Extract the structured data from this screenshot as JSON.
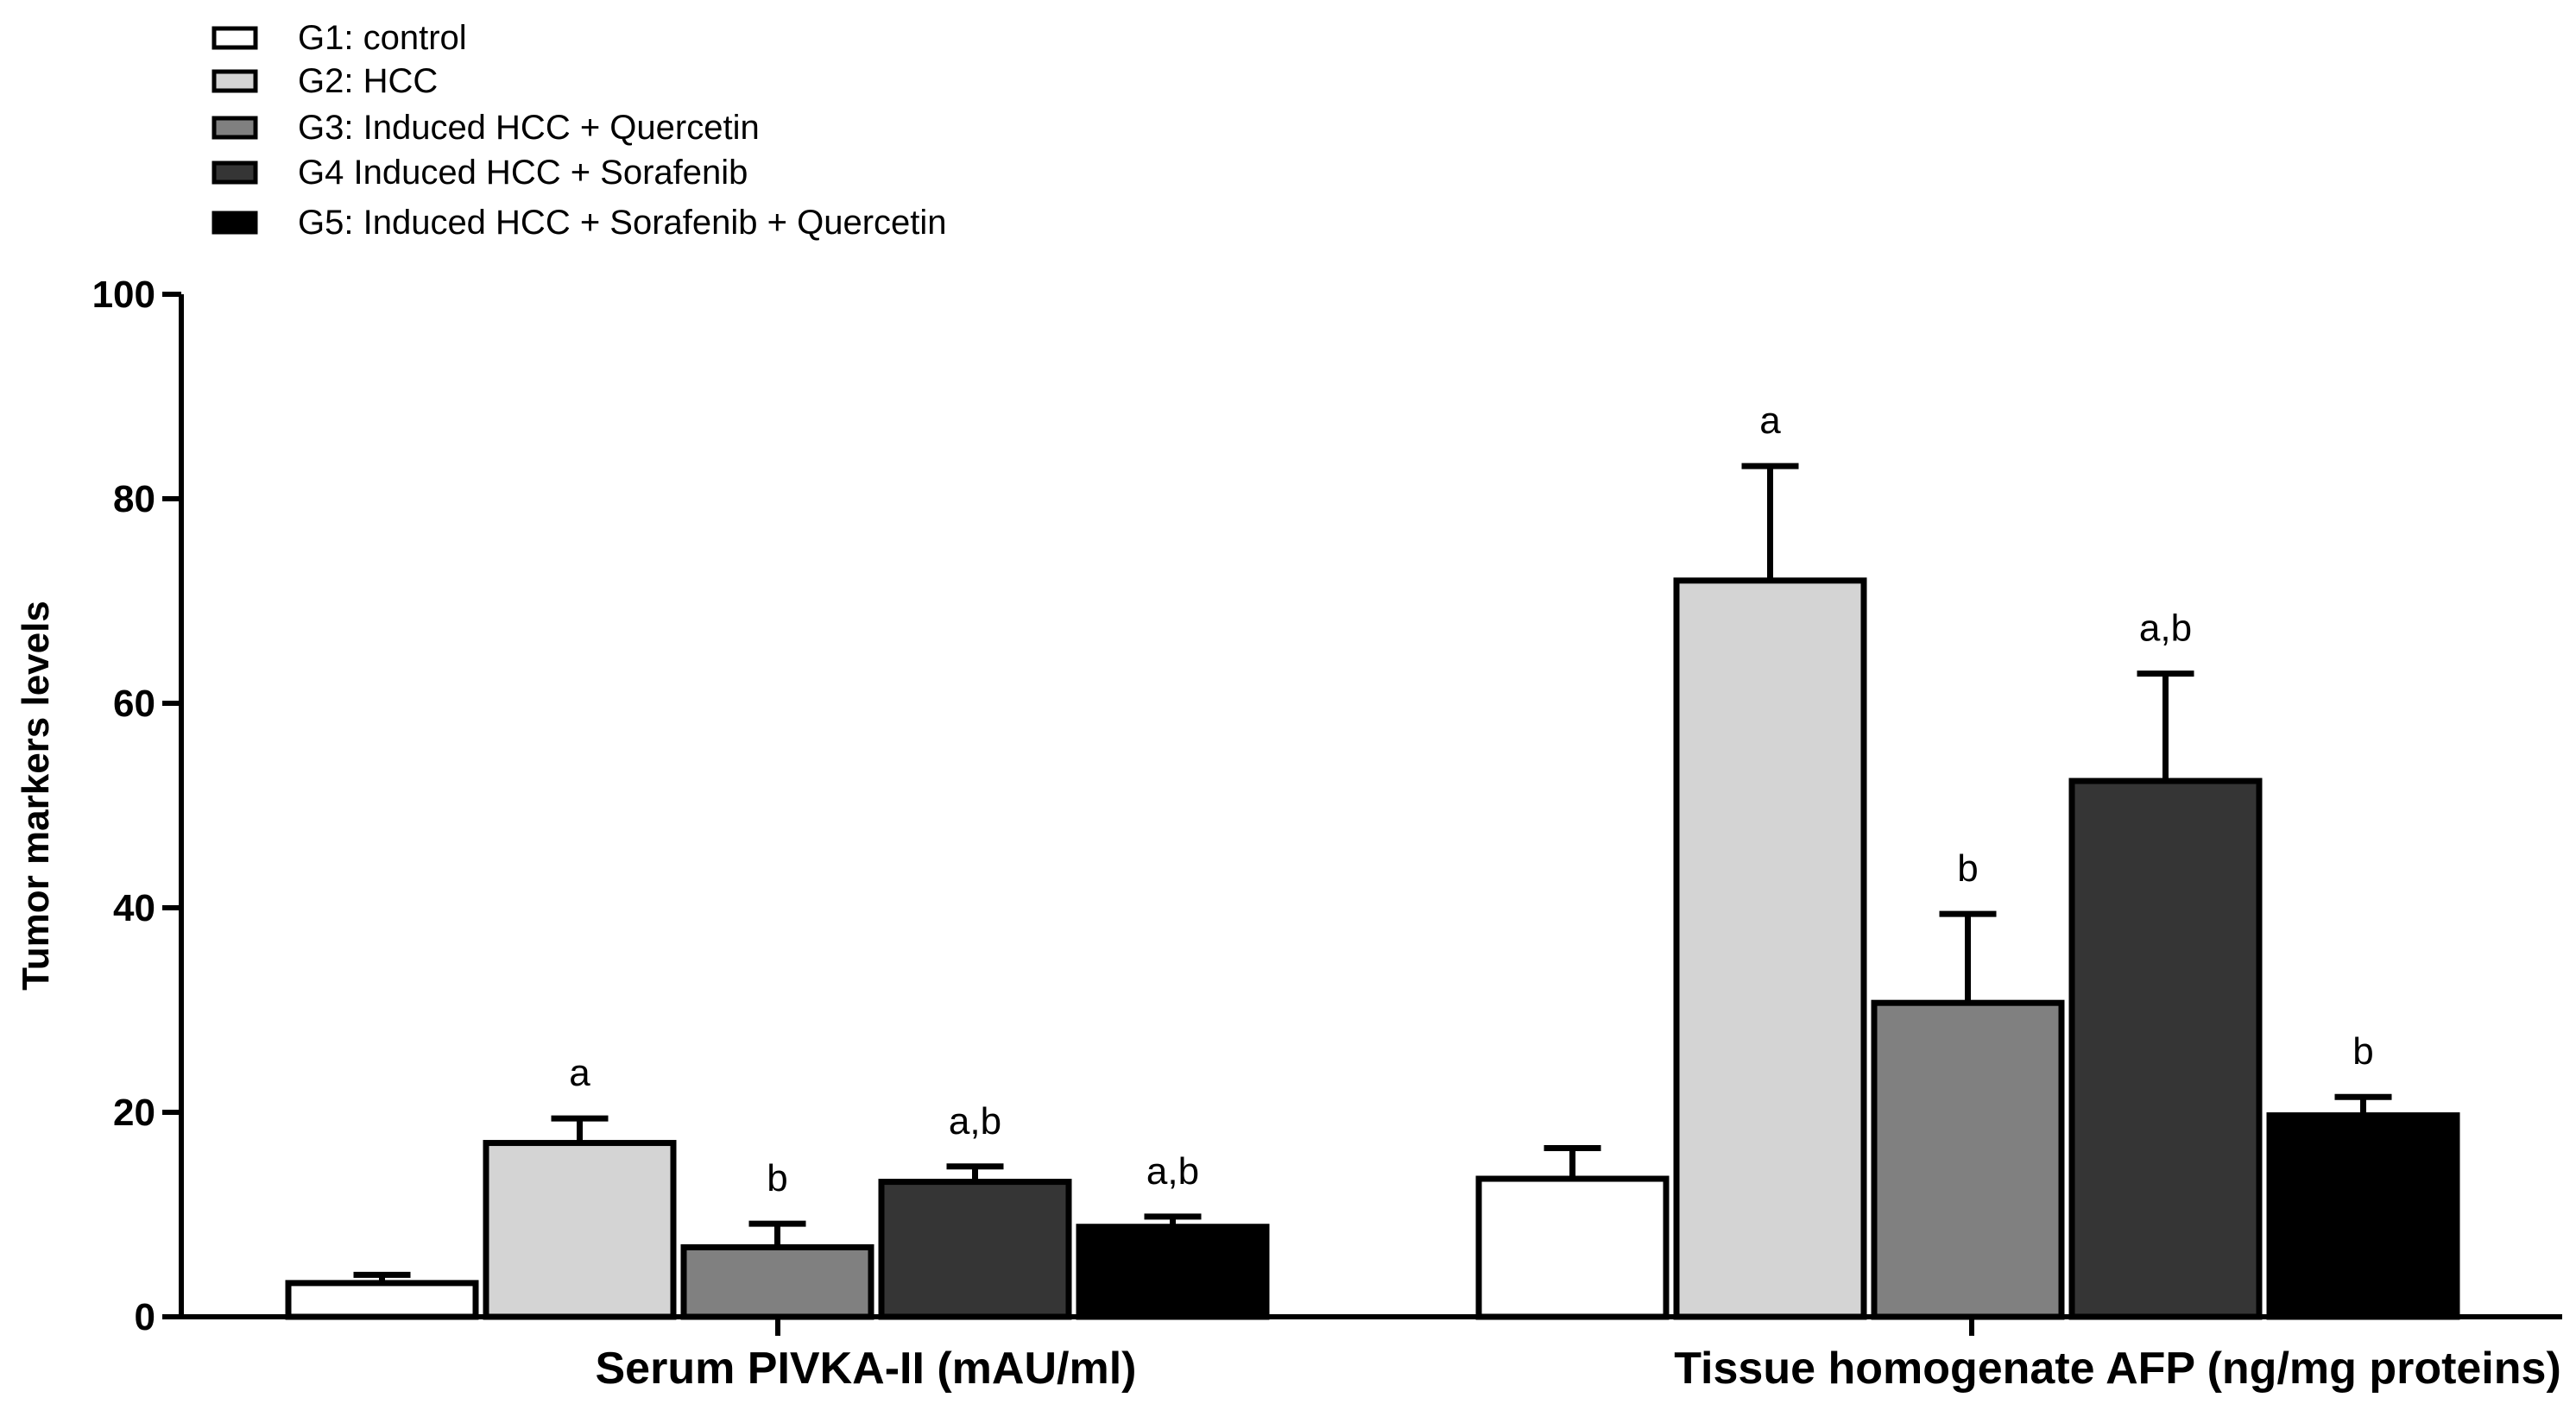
{
  "chart_data": {
    "type": "bar",
    "title": "",
    "xlabel": "",
    "ylabel": "Tumor markers levels",
    "ylim": [
      0,
      100
    ],
    "yticks": [
      0,
      20,
      40,
      60,
      80,
      100
    ],
    "grid": false,
    "legend_position": "top-left",
    "categories": [
      "Serum PIVKA-II (mAU/ml)",
      "Tissue homogenate AFP (ng/mg proteins)"
    ],
    "series": [
      {
        "name": "G1:  control",
        "color": "#ffffff",
        "values": [
          3.3,
          13.5
        ],
        "errors": [
          0.8,
          3.0
        ],
        "annotations": [
          "",
          ""
        ]
      },
      {
        "name": "G2: HCC",
        "color": "#d4d4d4",
        "values": [
          17.0,
          72.0
        ],
        "errors": [
          2.4,
          11.2
        ],
        "annotations": [
          "a",
          "a"
        ]
      },
      {
        "name": "G3: Induced HCC + Quercetin",
        "color": "#808080",
        "values": [
          6.8,
          30.7
        ],
        "errors": [
          2.3,
          8.7
        ],
        "annotations": [
          "b",
          "b"
        ]
      },
      {
        "name": "G4 Induced HCC + Sorafenib",
        "color": "#353535",
        "values": [
          13.2,
          52.4
        ],
        "errors": [
          1.5,
          10.5
        ],
        "annotations": [
          "a,b",
          "a,b"
        ]
      },
      {
        "name": "G5: Induced HCC + Sorafenib + Quercetin",
        "color": "#000000",
        "values": [
          8.8,
          19.7
        ],
        "errors": [
          1.0,
          1.8
        ],
        "annotations": [
          "a,b",
          "b"
        ]
      }
    ]
  }
}
